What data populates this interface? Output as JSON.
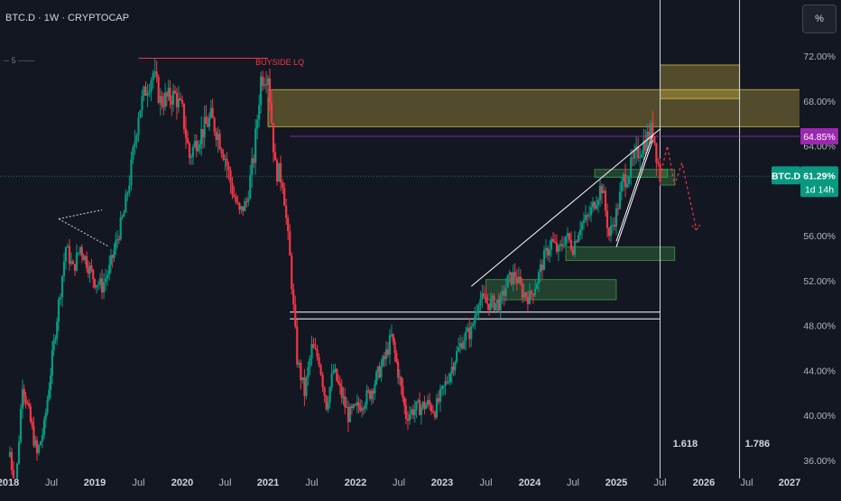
{
  "header": {
    "symbol_title": "BTC.D · 1W · CRYPTOCAP",
    "percent_toggle": "%",
    "legend_dash": "-- 5 ------"
  },
  "chart_data": {
    "type": "candlestick",
    "symbol": "BTC.D",
    "timeframe": "1W",
    "exchange": "CRYPTOCAP",
    "y_axis": {
      "unit": "%",
      "range": [
        36,
        74
      ],
      "tick_labels": [
        "72.00%",
        "68.00%",
        "64.00%",
        "60.00%",
        "56.00%",
        "52.00%",
        "48.00%",
        "44.00%",
        "40.00%",
        "36.00%"
      ]
    },
    "x_axis": {
      "range": [
        "2018-01",
        "2027-04"
      ],
      "tick_labels": [
        {
          "label": "2018",
          "date": "2018-01"
        },
        {
          "label": "Jul",
          "date": "2018-07"
        },
        {
          "label": "2019",
          "date": "2019-01"
        },
        {
          "label": "Jul",
          "date": "2019-07"
        },
        {
          "label": "2020",
          "date": "2020-01"
        },
        {
          "label": "Jul",
          "date": "2020-07"
        },
        {
          "label": "2021",
          "date": "2021-01"
        },
        {
          "label": "Jul",
          "date": "2021-07"
        },
        {
          "label": "2022",
          "date": "2022-01"
        },
        {
          "label": "Jul",
          "date": "2022-07"
        },
        {
          "label": "2023",
          "date": "2023-01"
        },
        {
          "label": "Jul",
          "date": "2023-07"
        },
        {
          "label": "2024",
          "date": "2024-01"
        },
        {
          "label": "Jul",
          "date": "2024-07"
        },
        {
          "label": "2025",
          "date": "2025-01"
        },
        {
          "label": "Jul",
          "date": "2025-07"
        },
        {
          "label": "2026",
          "date": "2026-01"
        },
        {
          "label": "Jul",
          "date": "2026-07"
        },
        {
          "label": "2027",
          "date": "2027-01"
        }
      ]
    },
    "price_path": [
      [
        "2018-01",
        38
      ],
      [
        "2018-02",
        33
      ],
      [
        "2018-03",
        43
      ],
      [
        "2018-05",
        36.5
      ],
      [
        "2018-06",
        39
      ],
      [
        "2018-08",
        50
      ],
      [
        "2018-09",
        55
      ],
      [
        "2018-10",
        53
      ],
      [
        "2018-11",
        55
      ],
      [
        "2019-01",
        52
      ],
      [
        "2019-02",
        51.5
      ],
      [
        "2019-03",
        53
      ],
      [
        "2019-05",
        58
      ],
      [
        "2019-06",
        62
      ],
      [
        "2019-07",
        67
      ],
      [
        "2019-08",
        69
      ],
      [
        "2019-09",
        70.5
      ],
      [
        "2019-10",
        68
      ],
      [
        "2019-12",
        68.5
      ],
      [
        "2020-01",
        67
      ],
      [
        "2020-02",
        63
      ],
      [
        "2020-03",
        64.5
      ],
      [
        "2020-05",
        66.5
      ],
      [
        "2020-06",
        65
      ],
      [
        "2020-07",
        63
      ],
      [
        "2020-08",
        60
      ],
      [
        "2020-09",
        58
      ],
      [
        "2020-10",
        59
      ],
      [
        "2020-11",
        63
      ],
      [
        "2020-12",
        70
      ],
      [
        "2021-01",
        70.5
      ],
      [
        "2021-02",
        62
      ],
      [
        "2021-03",
        61
      ],
      [
        "2021-04",
        54
      ],
      [
        "2021-05",
        45
      ],
      [
        "2021-06",
        42
      ],
      [
        "2021-07",
        46
      ],
      [
        "2021-08",
        45
      ],
      [
        "2021-09",
        41
      ],
      [
        "2021-10",
        44
      ],
      [
        "2021-12",
        40
      ],
      [
        "2022-01",
        40.5
      ],
      [
        "2022-03",
        42
      ],
      [
        "2022-05",
        45
      ],
      [
        "2022-06",
        47
      ],
      [
        "2022-08",
        40
      ],
      [
        "2022-09",
        40.5
      ],
      [
        "2022-11",
        41
      ],
      [
        "2022-12",
        40.5
      ],
      [
        "2023-01",
        42
      ],
      [
        "2023-03",
        45.5
      ],
      [
        "2023-04",
        47
      ],
      [
        "2023-05",
        47.5
      ],
      [
        "2023-06",
        50.5
      ],
      [
        "2023-07",
        50
      ],
      [
        "2023-09",
        50
      ],
      [
        "2023-10",
        52
      ],
      [
        "2023-11",
        52.5
      ],
      [
        "2023-12",
        51
      ],
      [
        "2024-01",
        50.5
      ],
      [
        "2024-02",
        52
      ],
      [
        "2024-03",
        54
      ],
      [
        "2024-04",
        55.5
      ],
      [
        "2024-05",
        54.5
      ],
      [
        "2024-06",
        56
      ],
      [
        "2024-07",
        55
      ],
      [
        "2024-08",
        57
      ],
      [
        "2024-09",
        57.5
      ],
      [
        "2024-10",
        59
      ],
      [
        "2024-11",
        60.5
      ],
      [
        "2024-12",
        56
      ],
      [
        "2025-01",
        58
      ],
      [
        "2025-02",
        61
      ],
      [
        "2025-03",
        62
      ],
      [
        "2025-04",
        63.5
      ],
      [
        "2025-05",
        64.5
      ],
      [
        "2025-06",
        65.5
      ],
      [
        "2025-07",
        61.29
      ]
    ],
    "projection_path": [
      [
        "2025-07",
        61.29
      ],
      [
        "2025-08",
        64
      ],
      [
        "2025-09",
        60.5
      ],
      [
        "2025-10",
        62.5
      ],
      [
        "2025-12",
        56.5
      ]
    ],
    "current_value": {
      "value": 61.29,
      "label": "BTC.D",
      "value_label": "61.29%",
      "countdown": "1d 14h",
      "color": "#089981"
    },
    "level_line": {
      "value": 64.85,
      "label": "64.85%",
      "color": "#9c27b0"
    },
    "horizontal_levels": [
      {
        "from": "2021-04",
        "to": "2025-07",
        "value": 49.2,
        "color": "#ffffff"
      },
      {
        "from": "2021-04",
        "to": "2025-07",
        "value": 48.6,
        "color": "#ffffff"
      }
    ],
    "annotations": [
      {
        "text": "BUYSIDE LQ",
        "x": "2021-02",
        "y": 71.2,
        "color": "#f23645"
      },
      {
        "text": "1.618",
        "x": "2025-08",
        "y": 37.2,
        "color": "#d1d4dc"
      },
      {
        "text": "1.786",
        "x": "2026-06",
        "y": 37.2,
        "color": "#d1d4dc"
      }
    ],
    "vertical_lines": [
      {
        "x": "2025-07",
        "label": "1.618"
      },
      {
        "x": "2026-06",
        "label": "1.786"
      }
    ],
    "zones": [
      {
        "x0": "2021-01",
        "x1": "2027-04",
        "y0": 65.7,
        "y1": 69,
        "color": "#f7d64a"
      },
      {
        "x0": "2025-07",
        "x1": "2026-06",
        "y0": 68.2,
        "y1": 71.2,
        "color": "#f7d64a"
      },
      {
        "x0": "2023-07",
        "x1": "2025-01",
        "y0": 50.3,
        "y1": 52.1,
        "color": "#4caf50"
      },
      {
        "x0": "2024-06",
        "x1": "2025-09",
        "y0": 53.8,
        "y1": 55,
        "color": "#4caf50"
      },
      {
        "x0": "2024-10",
        "x1": "2025-08",
        "y0": 61.2,
        "y1": 61.9,
        "color": "#4caf50"
      },
      {
        "x0": "2025-07",
        "x1": "2025-09",
        "y0": 60.5,
        "y1": 61.9,
        "color": "#4caf50"
      }
    ],
    "trendlines": [
      {
        "x0": "2018-08",
        "y0": 57.5,
        "x1": "2019-02",
        "y1": 58.3,
        "color": "#d1d4dc",
        "dashed": true
      },
      {
        "x0": "2018-08",
        "y0": 57.5,
        "x1": "2019-03",
        "y1": 55,
        "color": "#d1d4dc",
        "dashed": true
      },
      {
        "x0": "2019-07",
        "y0": 71.8,
        "x1": "2021-01",
        "y1": 71.8,
        "color": "#f23645",
        "dashed": false
      },
      {
        "x0": "2023-05",
        "y0": 51.5,
        "x1": "2025-07",
        "y1": 65.5,
        "color": "#ffffff",
        "dashed": false
      },
      {
        "x0": "2025-01",
        "y0": 55,
        "x1": "2025-06",
        "y1": 64.5,
        "color": "#ffffff",
        "dashed": false
      },
      {
        "x0": "2025-01",
        "y0": 55.5,
        "x1": "2025-06",
        "y1": 65,
        "color": "#ffffff",
        "dashed": false
      }
    ],
    "grid": false,
    "colors": {
      "background": "#131722",
      "up": "#089981",
      "down": "#f23645",
      "axis_text": "#b2b5be"
    }
  }
}
